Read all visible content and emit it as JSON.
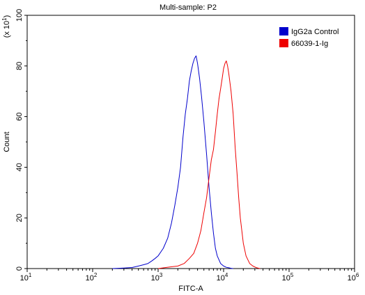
{
  "chart_data": {
    "type": "line",
    "title": "Multi-sample: P2",
    "xlabel": "FITC-A",
    "ylabel": "Count",
    "y_multiplier_label": "(x 10",
    "y_multiplier_exp": "1",
    "x_scale": "log",
    "xlim": [
      10,
      1000000
    ],
    "ylim": [
      0,
      100
    ],
    "x_ticks": [
      {
        "base": "10",
        "exp": "1",
        "value": 10
      },
      {
        "base": "10",
        "exp": "2",
        "value": 100
      },
      {
        "base": "10",
        "exp": "3",
        "value": 1000
      },
      {
        "base": "10",
        "exp": "4",
        "value": 10000
      },
      {
        "base": "10",
        "exp": "5",
        "value": 100000
      },
      {
        "base": "10",
        "exp": "6",
        "value": 1000000
      }
    ],
    "y_ticks": [
      "0",
      "20",
      "40",
      "60",
      "80",
      "100"
    ],
    "legend_position": "top-right",
    "series": [
      {
        "name": "IgG2a Control",
        "color": "#0000cc",
        "x": [
          200,
          300,
          400,
          500,
          600,
          700,
          800,
          900,
          1000,
          1200,
          1400,
          1600,
          1800,
          2000,
          2200,
          2400,
          2600,
          2800,
          3000,
          3200,
          3400,
          3600,
          3800,
          4000,
          4300,
          4600,
          5000,
          5500,
          6000,
          6500,
          7000,
          7500,
          8000,
          9000,
          10000,
          11000,
          12000,
          13000,
          14000
        ],
        "y": [
          0,
          0.2,
          0.4,
          1,
          1.5,
          2,
          3,
          4,
          5,
          8,
          12,
          18,
          25,
          32,
          40,
          52,
          61,
          67,
          74,
          78,
          81,
          83,
          84,
          81,
          75,
          68,
          58,
          45,
          32,
          22,
          14,
          8,
          5,
          2,
          1,
          0.5,
          0.3,
          0.1,
          0
        ]
      },
      {
        "name": "66039-1-Ig",
        "color": "#ee0000",
        "x": [
          1000,
          1400,
          2000,
          2500,
          3000,
          3500,
          4000,
          4500,
          5000,
          5500,
          6000,
          6500,
          7000,
          7500,
          8000,
          8500,
          9000,
          9500,
          10000,
          10500,
          11000,
          11500,
          12000,
          13000,
          14000,
          15000,
          16000,
          17000,
          18000,
          20000,
          22000,
          25000,
          28000,
          32000,
          36000
        ],
        "y": [
          0,
          0.5,
          1,
          2,
          4,
          6,
          10,
          15,
          22,
          28,
          36,
          43,
          47,
          54,
          61,
          67,
          71,
          75,
          79,
          81,
          82,
          80,
          77,
          70,
          61,
          48,
          38,
          28,
          20,
          10,
          5,
          2,
          1,
          0.3,
          0
        ]
      }
    ]
  }
}
